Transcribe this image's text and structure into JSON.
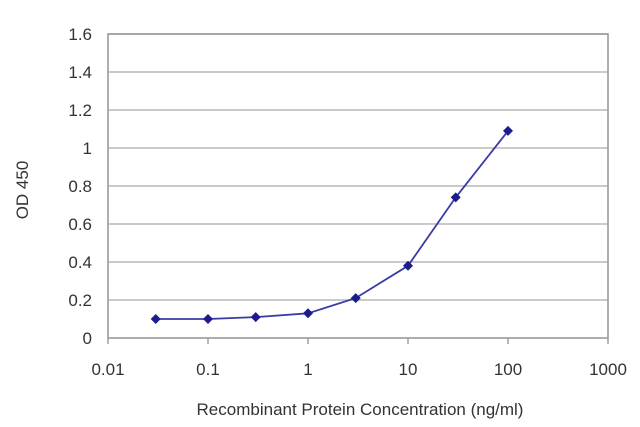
{
  "chart_data": {
    "type": "line",
    "title": "",
    "xlabel": "Recombinant Protein Concentration (ng/ml)",
    "ylabel": "OD 450",
    "x_scale": "log",
    "xlim": [
      0.01,
      1000
    ],
    "ylim": [
      0,
      1.6
    ],
    "x_ticks": [
      0.01,
      0.1,
      1,
      10,
      100,
      1000
    ],
    "x_tick_labels": [
      "0.01",
      "0.1",
      "1",
      "10",
      "100",
      "1000"
    ],
    "y_ticks": [
      0,
      0.2,
      0.4,
      0.6,
      0.8,
      1,
      1.2,
      1.4,
      1.6
    ],
    "y_tick_labels": [
      "0",
      "0.2",
      "0.4",
      "0.6",
      "0.8",
      "1",
      "1.2",
      "1.4",
      "1.6"
    ],
    "grid": "horizontal",
    "legend": "none",
    "colors": {
      "series": "#3b3ba8",
      "marker": "#1c1c8c",
      "grid": "#b8b8b8",
      "frame": "#9a9a9a"
    },
    "series": [
      {
        "x": [
          0.03,
          0.1,
          0.3,
          1,
          3,
          10,
          30,
          100
        ],
        "y": [
          0.1,
          0.1,
          0.11,
          0.13,
          0.21,
          0.38,
          0.74,
          1.09
        ]
      }
    ]
  }
}
